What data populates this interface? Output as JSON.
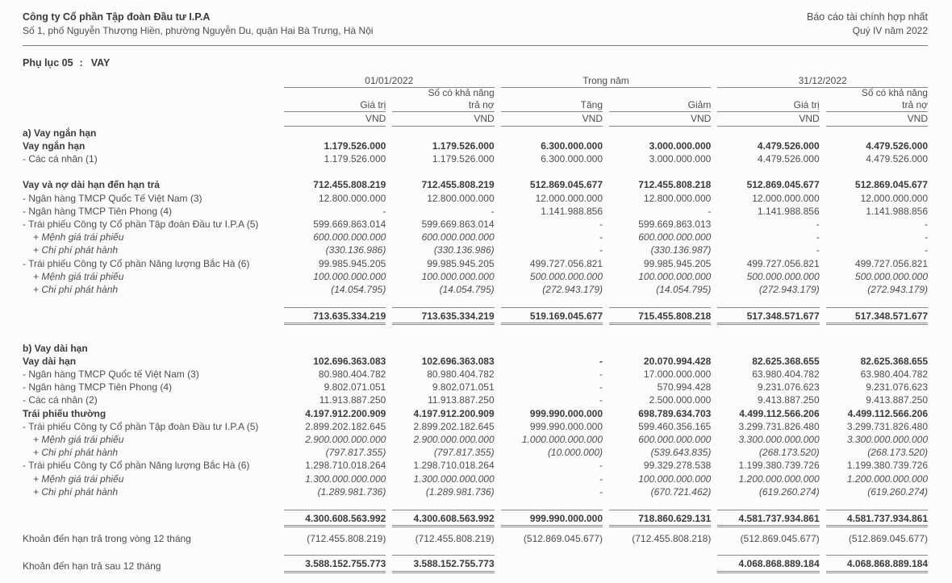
{
  "header": {
    "company": "Công ty Cổ phần Tập đoàn Đầu tư I.P.A",
    "address": "Số 1, phố Nguyễn Thượng Hiền, phường Nguyễn Du, quận Hai Bà Trưng, Hà Nội",
    "report_title": "Báo cáo tài chính hợp nhất",
    "report_period": "Quý IV năm 2022"
  },
  "appendix": {
    "label": "Phụ lục 05",
    "colon": ":",
    "title": "VAY"
  },
  "colors": {
    "text": "#4c4c4c",
    "text_bold": "#3a3a3a",
    "rule": "#8a8a8a",
    "background": "#fcfcfc"
  },
  "table": {
    "column_groups": [
      "01/01/2022",
      "Trong năm",
      "31/12/2022"
    ],
    "columns": [
      {
        "top": "",
        "label": "Giá trị",
        "unit": "VND"
      },
      {
        "top": "Số có khả năng",
        "label": "trả nợ",
        "unit": "VND"
      },
      {
        "top": "",
        "label": "Tăng",
        "unit": "VND"
      },
      {
        "top": "",
        "label": "Giảm",
        "unit": "VND"
      },
      {
        "top": "",
        "label": "Giá trị",
        "unit": "VND"
      },
      {
        "top": "Số có khả năng",
        "label": "trả nợ",
        "unit": "VND"
      }
    ],
    "rows": [
      {
        "kind": "section",
        "label": "a) Vay ngắn hạn",
        "bold": true
      },
      {
        "kind": "item",
        "label": "Vay ngắn hạn",
        "bold": true,
        "values": [
          "1.179.526.000",
          "1.179.526.000",
          "6.300.000.000",
          "3.000.000.000",
          "4.479.526.000",
          "4.479.526.000"
        ]
      },
      {
        "kind": "item",
        "label": "- Các cá nhân (1)",
        "values": [
          "1.179.526.000",
          "1.179.526.000",
          "6.300.000.000",
          "3.000.000.000",
          "4.479.526.000",
          "4.479.526.000"
        ]
      },
      {
        "kind": "gap"
      },
      {
        "kind": "item",
        "label": "Vay và nợ dài hạn đến hạn trả",
        "bold": true,
        "values": [
          "712.455.808.219",
          "712.455.808.219",
          "512.869.045.677",
          "712.455.808.218",
          "512.869.045.677",
          "512.869.045.677"
        ]
      },
      {
        "kind": "item",
        "label": "- Ngân hàng TMCP Quốc Tế Việt Nam (3)",
        "values": [
          "12.800.000.000",
          "12.800.000.000",
          "12.000.000.000",
          "12.800.000.000",
          "12.000.000.000",
          "12.000.000.000"
        ]
      },
      {
        "kind": "item",
        "label": "- Ngân hàng TMCP Tiên Phong (4)",
        "values": [
          "-",
          "-",
          "1.141.988.856",
          "-",
          "1.141.988.856",
          "1.141.988.856"
        ]
      },
      {
        "kind": "item",
        "label": "- Trái phiếu Công ty Cổ phần Tập đoàn Đầu tư I.P.A (5)",
        "values": [
          "599.669.863.014",
          "599.669.863.014",
          "-",
          "599.669.863.013",
          "-",
          "-"
        ]
      },
      {
        "kind": "item",
        "label": "+ Mệnh giá trái phiếu",
        "italic": true,
        "indent": true,
        "values": [
          "600.000.000.000",
          "600.000.000.000",
          "-",
          "600.000.000.000",
          "-",
          "-"
        ]
      },
      {
        "kind": "item",
        "label": "+ Chi phí phát hành",
        "italic": true,
        "indent": true,
        "values": [
          "(330.136.986)",
          "(330.136.986)",
          "-",
          "(330.136.987)",
          "-",
          "-"
        ]
      },
      {
        "kind": "item",
        "label": "- Trái phiếu Công ty Cổ phần Năng lượng Bắc Hà (6)",
        "values": [
          "99.985.945.205",
          "99.985.945.205",
          "499.727.056.821",
          "99.985.945.205",
          "499.727.056.821",
          "499.727.056.821"
        ]
      },
      {
        "kind": "item",
        "label": "+ Mệnh giá trái phiếu",
        "italic": true,
        "indent": true,
        "values": [
          "100.000.000.000",
          "100.000.000.000",
          "500.000.000.000",
          "100.000.000.000",
          "500.000.000.000",
          "500.000.000.000"
        ]
      },
      {
        "kind": "item",
        "label": "+ Chi phí phát hành",
        "italic": true,
        "indent": true,
        "values": [
          "(14.054.795)",
          "(14.054.795)",
          "(272.943.179)",
          "(14.054.795)",
          "(272.943.179)",
          "(272.943.179)"
        ]
      },
      {
        "kind": "subtotal",
        "label": "",
        "bold": true,
        "values": [
          "713.635.334.219",
          "713.635.334.219",
          "519.169.045.677",
          "715.455.808.218",
          "517.348.571.677",
          "517.348.571.677"
        ]
      },
      {
        "kind": "gap"
      },
      {
        "kind": "section",
        "label": "b) Vay dài hạn",
        "bold": true
      },
      {
        "kind": "item",
        "label": "Vay dài hạn",
        "bold": true,
        "values": [
          "102.696.363.083",
          "102.696.363.083",
          "-",
          "20.070.994.428",
          "82.625.368.655",
          "82.625.368.655"
        ]
      },
      {
        "kind": "item",
        "label": "- Ngân hàng TMCP Quốc tế Việt Nam (3)",
        "values": [
          "80.980.404.782",
          "80.980.404.782",
          "-",
          "17.000.000.000",
          "63.980.404.782",
          "63.980.404.782"
        ]
      },
      {
        "kind": "item",
        "label": "- Ngân hàng TMCP Tiên Phong (4)",
        "values": [
          "9.802.071.051",
          "9.802.071.051",
          "-",
          "570.994.428",
          "9.231.076.623",
          "9.231.076.623"
        ]
      },
      {
        "kind": "item",
        "label": "- Các cá nhân (2)",
        "values": [
          "11.913.887.250",
          "11.913.887.250",
          "-",
          "2.500.000.000",
          "9.413.887.250",
          "9.413.887.250"
        ]
      },
      {
        "kind": "item",
        "label": "Trái phiếu thường",
        "bold": true,
        "values": [
          "4.197.912.200.909",
          "4.197.912.200.909",
          "999.990.000.000",
          "698.789.634.703",
          "4.499.112.566.206",
          "4.499.112.566.206"
        ]
      },
      {
        "kind": "item",
        "label": "- Trái phiếu Công ty Cổ phần Tập đoàn Đầu tư I.P.A (5)",
        "values": [
          "2.899.202.182.645",
          "2.899.202.182.645",
          "999.990.000.000",
          "599.460.356.165",
          "3.299.731.826.480",
          "3.299.731.826.480"
        ]
      },
      {
        "kind": "item",
        "label": "+ Mệnh giá trái phiếu",
        "italic": true,
        "indent": true,
        "values": [
          "2.900.000.000.000",
          "2.900.000.000.000",
          "1.000.000.000.000",
          "600.000.000.000",
          "3.300.000.000.000",
          "3.300.000.000.000"
        ]
      },
      {
        "kind": "item",
        "label": "+ Chi phí phát hành",
        "italic": true,
        "indent": true,
        "values": [
          "(797.817.355)",
          "(797.817.355)",
          "(10.000.000)",
          "(539.643.835)",
          "(268.173.520)",
          "(268.173.520)"
        ]
      },
      {
        "kind": "item",
        "label": "- Trái phiếu Công ty Cổ phần Năng lượng Bắc Hà (6)",
        "values": [
          "1.298.710.018.264",
          "1.298.710.018.264",
          "-",
          "99.329.278.538",
          "1.199.380.739.726",
          "1.199.380.739.726"
        ]
      },
      {
        "kind": "item",
        "label": "+ Mệnh giá trái phiếu",
        "italic": true,
        "indent": true,
        "values": [
          "1.300.000.000.000",
          "1.300.000.000.000",
          "-",
          "100.000.000.000",
          "1.200.000.000.000",
          "1.200.000.000.000"
        ]
      },
      {
        "kind": "item",
        "label": "+ Chi phí phát hành",
        "italic": true,
        "indent": true,
        "values": [
          "(1.289.981.736)",
          "(1.289.981.736)",
          "-",
          "(670.721.462)",
          "(619.260.274)",
          "(619.260.274)"
        ]
      },
      {
        "kind": "subtotal",
        "label": "",
        "bold": true,
        "values": [
          "4.300.608.563.992",
          "4.300.608.563.992",
          "999.990.000.000",
          "718.860.629.131",
          "4.581.737.934.861",
          "4.581.737.934.861"
        ]
      },
      {
        "kind": "footer",
        "label": "Khoản đến hạn trả trong vòng 12 tháng",
        "values": [
          "(712.455.808.219)",
          "(712.455.808.219)",
          "(512.869.045.677)",
          "(712.455.808.218)",
          "(512.869.045.677)",
          "(512.869.045.677)"
        ]
      },
      {
        "kind": "total",
        "label": "Khoản đến hạn trả sau 12 tháng",
        "values": [
          "3.588.152.755.773",
          "3.588.152.755.773",
          "",
          "",
          "4.068.868.889.184",
          "4.068.868.889.184"
        ]
      }
    ]
  }
}
